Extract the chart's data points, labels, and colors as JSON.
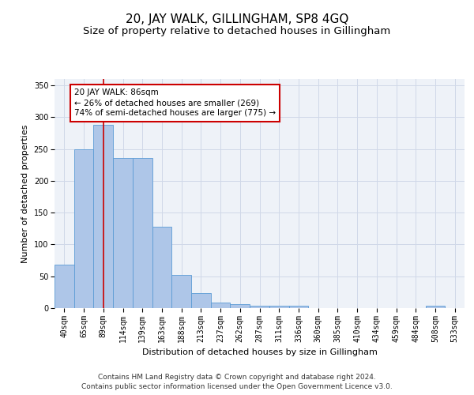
{
  "title": "20, JAY WALK, GILLINGHAM, SP8 4GQ",
  "subtitle": "Size of property relative to detached houses in Gillingham",
  "xlabel": "Distribution of detached houses by size in Gillingham",
  "ylabel": "Number of detached properties",
  "footnote1": "Contains HM Land Registry data © Crown copyright and database right 2024.",
  "footnote2": "Contains public sector information licensed under the Open Government Licence v3.0.",
  "categories": [
    "40sqm",
    "65sqm",
    "89sqm",
    "114sqm",
    "139sqm",
    "163sqm",
    "188sqm",
    "213sqm",
    "237sqm",
    "262sqm",
    "287sqm",
    "311sqm",
    "336sqm",
    "360sqm",
    "385sqm",
    "410sqm",
    "434sqm",
    "459sqm",
    "484sqm",
    "508sqm",
    "533sqm"
  ],
  "values": [
    68,
    250,
    288,
    236,
    236,
    128,
    52,
    24,
    9,
    6,
    4,
    4,
    4,
    0,
    0,
    0,
    0,
    0,
    0,
    4,
    0
  ],
  "bar_color": "#aec6e8",
  "bar_edge_color": "#5b9bd5",
  "red_line_index": 2,
  "red_line_color": "#cc0000",
  "annotation_text": "20 JAY WALK: 86sqm\n← 26% of detached houses are smaller (269)\n74% of semi-detached houses are larger (775) →",
  "annotation_box_color": "#ffffff",
  "annotation_box_edge_color": "#cc0000",
  "ylim": [
    0,
    360
  ],
  "yticks": [
    0,
    50,
    100,
    150,
    200,
    250,
    300,
    350
  ],
  "grid_color": "#d0d8e8",
  "background_color": "#eef2f8",
  "fig_background": "#ffffff",
  "title_fontsize": 11,
  "subtitle_fontsize": 9.5,
  "axis_label_fontsize": 8,
  "tick_fontsize": 7,
  "annotation_fontsize": 7.5
}
